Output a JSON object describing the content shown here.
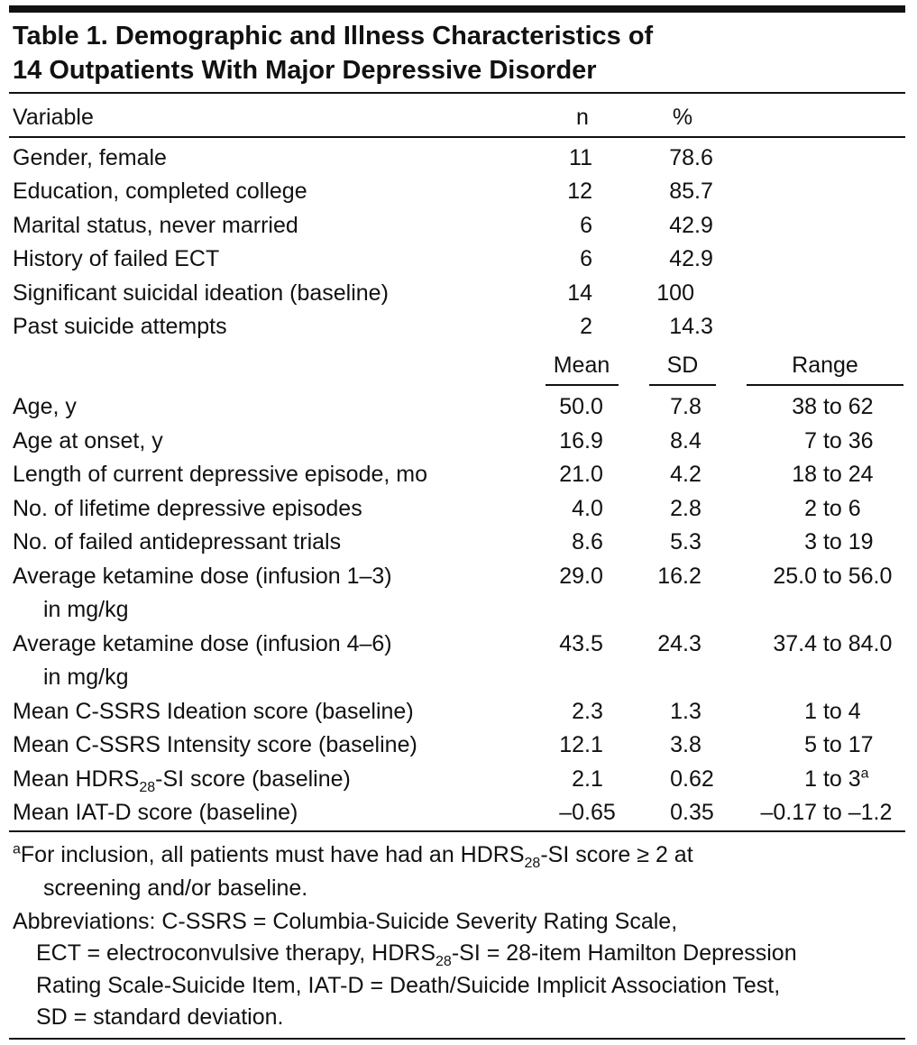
{
  "table": {
    "title": [
      "Table 1. Demographic and Illness Characteristics of",
      "14 Outpatients With Major Depressive Disorder"
    ],
    "header1": [
      "Variable",
      "n",
      "%"
    ],
    "rows1": [
      [
        "Gender, female",
        "11",
        "78.6"
      ],
      [
        "Education, completed college",
        "12",
        "85.7"
      ],
      [
        "Marital status, never married",
        "6",
        "42.9"
      ],
      [
        "History of failed ECT",
        "6",
        "42.9"
      ],
      [
        "Significant suicidal ideation (baseline)",
        "14",
        "100"
      ],
      [
        "Past suicide attempts",
        "2",
        "14.3"
      ]
    ],
    "header2": [
      "Mean",
      "SD",
      "Range"
    ],
    "rows2": [
      {
        "variable": [
          "Age, y"
        ],
        "mean": "50.0",
        "sd": "7.8",
        "range": "38 to 62"
      },
      {
        "variable": [
          "Age at onset, y"
        ],
        "mean": "16.9",
        "sd": "8.4",
        "range": "7 to 36"
      },
      {
        "variable": [
          "Length of current depressive episode, mo"
        ],
        "mean": "21.0",
        "sd": "4.2",
        "range": "18 to 24"
      },
      {
        "variable": [
          "No. of lifetime depressive episodes"
        ],
        "mean": "4.0",
        "sd": "2.8",
        "range": "2 to 6"
      },
      {
        "variable": [
          "No. of failed antidepressant trials"
        ],
        "mean": "8.6",
        "sd": "5.3",
        "range": "3 to 19"
      },
      {
        "variable": [
          "Average ketamine dose (infusion 1–3)",
          "in mg/kg"
        ],
        "mean": "29.0",
        "sd": "16.2",
        "range": "25.0 to 56.0"
      },
      {
        "variable": [
          "Average ketamine dose (infusion 4–6)",
          "in mg/kg"
        ],
        "mean": "43.5",
        "sd": "24.3",
        "range": "37.4 to 84.0"
      },
      {
        "variable": [
          "Mean C-SSRS Ideation score (baseline)"
        ],
        "mean": "2.3",
        "sd": "1.3",
        "range": "1 to 4"
      },
      {
        "variable": [
          "Mean C-SSRS Intensity score (baseline)"
        ],
        "mean": "12.1",
        "sd": "3.8",
        "range": "5 to 17"
      },
      {
        "variable": [
          [
            "Mean HDRS",
            {
              "sub": "28"
            },
            "-SI score (baseline)"
          ]
        ],
        "mean": "2.1",
        "sd": "0.62",
        "range": [
          "1 to 3",
          {
            "sup": "a"
          }
        ]
      },
      {
        "variable": [
          "Mean IAT-D score (baseline)"
        ],
        "mean": "–0.65",
        "sd": "0.35",
        "range": "–0.17 to –1.2"
      }
    ],
    "footnotes": [
      [
        [
          {
            "sup": "a"
          },
          "For inclusion, all patients must have had an HDRS",
          {
            "sub": "28"
          },
          "-SI score ≥ 2 at"
        ],
        "screening and/or baseline."
      ],
      [
        "Abbreviations: C-SSRS = Columbia-Suicide Severity Rating Scale,",
        [
          "ECT = electroconvulsive therapy, HDRS",
          {
            "sub": "28"
          },
          "-SI = 28-item Hamilton Depression"
        ],
        "Rating Scale-Suicide Item, IAT-D = Death/Suicide Implicit Association Test,",
        "SD = standard deviation."
      ]
    ]
  }
}
